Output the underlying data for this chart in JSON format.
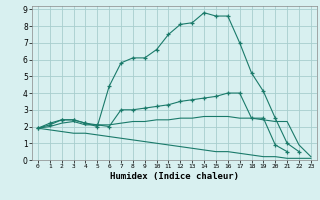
{
  "xlabel": "Humidex (Indice chaleur)",
  "bg_color": "#d8f0f0",
  "grid_color": "#a8cece",
  "line_color": "#1a7a6a",
  "xlim": [
    -0.5,
    23.5
  ],
  "ylim": [
    0,
    9.2
  ],
  "xticks": [
    0,
    1,
    2,
    3,
    4,
    5,
    6,
    7,
    8,
    9,
    10,
    11,
    12,
    13,
    14,
    15,
    16,
    17,
    18,
    19,
    20,
    21,
    22,
    23
  ],
  "yticks": [
    0,
    1,
    2,
    3,
    4,
    5,
    6,
    7,
    8,
    9
  ],
  "series": [
    {
      "x": [
        0,
        1,
        2,
        3,
        4,
        5,
        6,
        7,
        8,
        9,
        10,
        11,
        12,
        13,
        14,
        15,
        16,
        17,
        18,
        19,
        20,
        21,
        22,
        23
      ],
      "y": [
        1.9,
        2.2,
        2.4,
        2.4,
        2.2,
        2.0,
        4.4,
        5.8,
        6.1,
        6.1,
        6.6,
        7.5,
        8.1,
        8.2,
        8.8,
        8.6,
        8.6,
        7.0,
        5.2,
        4.1,
        2.5,
        1.0,
        0.5,
        null
      ],
      "marker": true
    },
    {
      "x": [
        0,
        1,
        2,
        3,
        4,
        5,
        6,
        7,
        8,
        9,
        10,
        11,
        12,
        13,
        14,
        15,
        16,
        17,
        18,
        19,
        20,
        21,
        22,
        23
      ],
      "y": [
        1.9,
        2.1,
        2.4,
        2.4,
        2.2,
        2.1,
        2.0,
        3.0,
        3.0,
        3.1,
        3.2,
        3.3,
        3.5,
        3.6,
        3.7,
        3.8,
        4.0,
        4.0,
        2.5,
        2.5,
        0.9,
        0.5,
        null,
        null
      ],
      "marker": true
    },
    {
      "x": [
        0,
        1,
        2,
        3,
        4,
        5,
        6,
        7,
        8,
        9,
        10,
        11,
        12,
        13,
        14,
        15,
        16,
        17,
        18,
        19,
        20,
        21,
        22,
        23
      ],
      "y": [
        1.9,
        2.0,
        2.2,
        2.3,
        2.1,
        2.1,
        2.1,
        2.2,
        2.3,
        2.3,
        2.4,
        2.4,
        2.5,
        2.5,
        2.6,
        2.6,
        2.6,
        2.5,
        2.5,
        2.4,
        2.3,
        2.3,
        0.9,
        0.2
      ],
      "marker": false
    },
    {
      "x": [
        0,
        1,
        2,
        3,
        4,
        5,
        6,
        7,
        8,
        9,
        10,
        11,
        12,
        13,
        14,
        15,
        16,
        17,
        18,
        19,
        20,
        21,
        22,
        23
      ],
      "y": [
        1.9,
        1.8,
        1.7,
        1.6,
        1.6,
        1.5,
        1.4,
        1.3,
        1.2,
        1.1,
        1.0,
        0.9,
        0.8,
        0.7,
        0.6,
        0.5,
        0.5,
        0.4,
        0.3,
        0.2,
        0.2,
        0.1,
        0.1,
        0.1
      ],
      "marker": false
    }
  ]
}
